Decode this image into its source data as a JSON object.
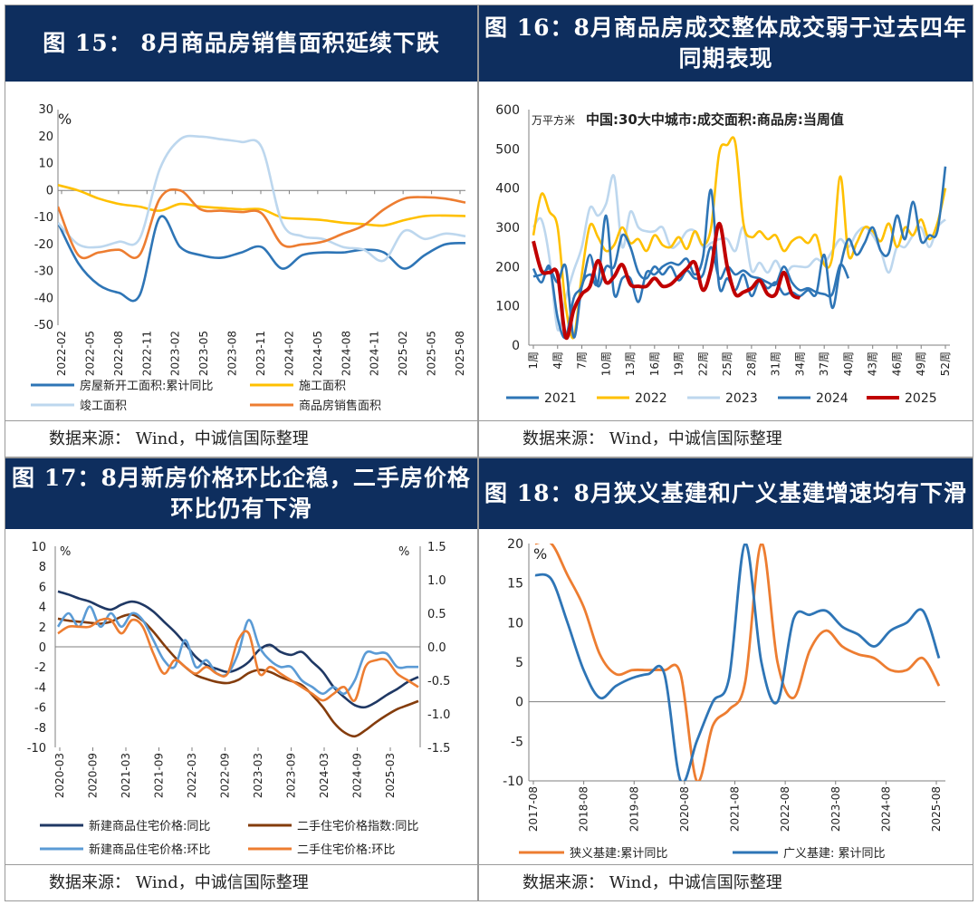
{
  "panels": {
    "p15": {
      "title": "图 15： 8月商品房销售面积延续下跌",
      "source": "数据来源： Wind，中诚信国际整理"
    },
    "p16": {
      "title": "图 16：8月商品房成交整体成交弱于过去四年同期表现",
      "source": "数据来源： Wind，中诚信国际整理"
    },
    "p17": {
      "title": "图 17：8月新房价格环比企稳，二手房价格环比仍有下滑",
      "source": "数据来源： Wind，中诚信国际整理"
    },
    "p18": {
      "title": "图 18：8月狭义基建和广义基建增速均有下滑",
      "source": "数据来源： Wind，中诚信国际整理"
    }
  },
  "chart_data": [
    {
      "id": "c15",
      "type": "line",
      "unit": "%",
      "ylim": [
        -50,
        30
      ],
      "yticks": [
        30,
        20,
        10,
        0,
        -10,
        -20,
        -30,
        -40,
        -50
      ],
      "xlabels": [
        "2022-02",
        "2022-05",
        "2022-08",
        "2022-11",
        "2023-02",
        "2023-05",
        "2023-08",
        "2023-11",
        "2024-02",
        "2024-05",
        "2024-08",
        "2024-11",
        "2025-02",
        "2025-05",
        "2025-08"
      ],
      "series": [
        {
          "name": "房屋新开工面积:累计同比",
          "color": "#2e75b6",
          "values": [
            -12,
            -27,
            -35,
            -38,
            -39,
            -10,
            -21,
            -24,
            -25,
            -23,
            -21,
            -29,
            -24,
            -23,
            -23,
            -22,
            -23,
            -29,
            -24,
            -20,
            -19.5
          ]
        },
        {
          "name": "施工面积",
          "color": "#ffc000",
          "values": [
            2,
            0,
            -3,
            -5,
            -6,
            -7.5,
            -5,
            -6,
            -6.5,
            -7,
            -7,
            -10,
            -10.5,
            -11,
            -12,
            -12.5,
            -13,
            -11,
            -9.5,
            -9.3,
            -9.5
          ]
        },
        {
          "name": "竣工面积",
          "color": "#bdd7ee",
          "values": [
            -12,
            -20,
            -21,
            -19,
            -18,
            8,
            19,
            20,
            19,
            18,
            16,
            -12,
            -17,
            -18,
            -21,
            -22,
            -26,
            -15,
            -18,
            -16,
            -17
          ]
        },
        {
          "name": "商品房销售面积",
          "color": "#ed7d31",
          "values": [
            -6,
            -24,
            -23,
            -22,
            -24,
            -3,
            0,
            -7,
            -7.5,
            -8,
            -8.5,
            -20,
            -20,
            -19,
            -16,
            -13,
            -7,
            -3,
            -2.5,
            -3,
            -4.5
          ]
        }
      ]
    },
    {
      "id": "c16",
      "type": "line",
      "title": "中国:30大中城市:成交面积:商品房:当周值",
      "unit": "万平方米",
      "ylim": [
        0,
        600
      ],
      "yticks": [
        600,
        500,
        400,
        300,
        200,
        100,
        0
      ],
      "xlabels": [
        "1周",
        "4周",
        "7周",
        "10周",
        "13周",
        "16周",
        "19周",
        "22周",
        "25周",
        "28周",
        "31周",
        "34周",
        "37周",
        "40周",
        "43周",
        "46周",
        "49周",
        "52周"
      ],
      "series": [
        {
          "name": "2021",
          "color": "#2e75b6",
          "values": [
            175,
            180,
            195,
            160,
            200,
            20,
            150,
            180,
            160,
            330,
            130,
            170,
            170,
            110,
            185,
            180,
            200,
            210,
            205,
            220,
            180,
            225,
            395,
            150,
            170,
            140,
            180,
            125,
            165,
            145,
            160,
            130,
            135,
            125,
            140,
            130,
            230,
            95,
            200,
            270,
            230,
            260,
            300,
            240,
            235,
            330,
            270,
            365,
            265,
            280,
            290,
            455
          ]
        },
        {
          "name": "2022",
          "color": "#ffc000",
          "values": [
            280,
            385,
            340,
            300,
            100,
            20,
            180,
            305,
            275,
            240,
            255,
            300,
            260,
            270,
            240,
            280,
            255,
            250,
            275,
            245,
            290,
            255,
            300,
            490,
            510,
            515,
            310,
            275,
            290,
            270,
            280,
            240,
            265,
            275,
            260,
            280,
            205,
            225,
            430,
            230,
            260,
            300,
            290,
            265,
            310,
            250,
            300,
            280,
            320,
            270,
            310,
            400
          ]
        },
        {
          "name": "2023",
          "color": "#bdd7ee",
          "values": [
            300,
            320,
            220,
            40,
            120,
            190,
            250,
            350,
            330,
            360,
            430,
            250,
            340,
            300,
            290,
            290,
            300,
            250,
            260,
            290,
            290,
            250,
            260,
            270,
            270,
            240,
            300,
            190,
            210,
            185,
            215,
            180,
            200,
            200,
            200,
            220,
            210,
            240,
            270,
            250,
            285,
            300,
            280,
            240,
            185,
            250,
            250,
            280,
            300,
            250,
            300,
            320
          ]
        },
        {
          "name": "2024",
          "color": "#2e75b6",
          "values": [
            195,
            160,
            200,
            70,
            20,
            120,
            150,
            230,
            150,
            200,
            200,
            280,
            250,
            185,
            170,
            200,
            180,
            200,
            165,
            190,
            170,
            180,
            250,
            170,
            200,
            180,
            190,
            175,
            170,
            160,
            155,
            200,
            160,
            140,
            145,
            135,
            130,
            130,
            205,
            170
          ]
        },
        {
          "name": "2025",
          "color": "#c00000",
          "values": [
            265,
            190,
            185,
            180,
            20,
            90,
            130,
            150,
            215,
            160,
            175,
            205,
            155,
            150,
            150,
            170,
            150,
            155,
            175,
            195,
            210,
            140,
            195,
            310,
            200,
            130,
            135,
            145,
            165,
            130,
            130,
            185,
            130,
            120
          ]
        }
      ]
    },
    {
      "id": "c17",
      "type": "line",
      "unit_left": "%",
      "unit_right": "%",
      "ylim_left": [
        -10,
        10
      ],
      "ylim_right": [
        -1.5,
        1.5
      ],
      "yticks_left": [
        10,
        8,
        6,
        4,
        2,
        0,
        -2,
        -4,
        -6,
        -8,
        -10
      ],
      "yticks_right": [
        "1.5",
        "1.0",
        "0.5",
        "0.0",
        "-0.5",
        "-1.0",
        "-1.5"
      ],
      "xlabels": [
        "2020-03",
        "2020-09",
        "2021-03",
        "2021-09",
        "2022-03",
        "2022-09",
        "2023-03",
        "2023-09",
        "2024-03",
        "2024-09",
        "2025-03"
      ],
      "series": [
        {
          "name": "新建商品住宅价格:同比",
          "color": "#1f3864",
          "axis": "left",
          "values": [
            5.5,
            5.2,
            4.8,
            4.5,
            4,
            3.7,
            4.2,
            4.5,
            4.2,
            3.5,
            2.5,
            1.5,
            0.3,
            -1,
            -1.8,
            -2.2,
            -2.5,
            -2.2,
            -1.5,
            -0.3,
            0.2,
            -0.5,
            -0.8,
            -0.5,
            -1.5,
            -2.5,
            -4,
            -5,
            -5.8,
            -6,
            -5.5,
            -4.8,
            -4.2,
            -3.5,
            -3
          ]
        },
        {
          "name": "二手住宅价格指数:同比",
          "color": "#843c0c",
          "axis": "left",
          "values": [
            2.8,
            2.6,
            2.5,
            2.4,
            2.3,
            2.5,
            3,
            3.2,
            2.6,
            1.5,
            0.2,
            -1,
            -2,
            -2.8,
            -3.2,
            -3.5,
            -3.6,
            -3.3,
            -2.6,
            -2.3,
            -2.5,
            -3,
            -3.4,
            -3.8,
            -4.8,
            -6,
            -7.5,
            -8.5,
            -8.9,
            -8.3,
            -7.5,
            -6.8,
            -6.2,
            -5.8,
            -5.4
          ]
        },
        {
          "name": "新建商品住宅价格:环比",
          "color": "#5b9bd5",
          "axis": "right",
          "values": [
            0.3,
            0.5,
            0.3,
            0.6,
            0.3,
            0.5,
            0.3,
            0.5,
            0.4,
            0.1,
            -0.2,
            -0.3,
            0.1,
            -0.3,
            -0.2,
            -0.4,
            -0.4,
            -0.1,
            0.4,
            0,
            -0.2,
            -0.3,
            -0.3,
            -0.5,
            -0.6,
            -0.7,
            -0.6,
            -0.7,
            -0.5,
            -0.1,
            -0.1,
            -0.1,
            -0.3,
            -0.3,
            -0.3
          ]
        },
        {
          "name": "二手住宅价格:环比",
          "color": "#ed7d31",
          "axis": "right",
          "values": [
            0.2,
            0.3,
            0.3,
            0.3,
            0.4,
            0.4,
            0.2,
            0.4,
            0.3,
            -0.1,
            -0.4,
            -0.2,
            -0.3,
            -0.4,
            -0.3,
            -0.4,
            -0.4,
            0.1,
            0.2,
            -0.4,
            -0.3,
            -0.4,
            -0.5,
            -0.6,
            -0.7,
            -0.8,
            -0.7,
            -0.6,
            -0.8,
            -0.3,
            -0.2,
            -0.2,
            -0.4,
            -0.5,
            -0.6
          ]
        }
      ]
    },
    {
      "id": "c18",
      "type": "line",
      "unit": "%",
      "ylim": [
        -10,
        20
      ],
      "yticks": [
        20,
        15,
        10,
        5,
        0,
        -5,
        -10
      ],
      "xlabels": [
        "2017-08",
        "2018-08",
        "2019-08",
        "2020-08",
        "2021-08",
        "2022-08",
        "2023-08",
        "2024-08",
        "2025-08"
      ],
      "series": [
        {
          "name": "狭义基建:累计同比",
          "color": "#ed7d31",
          "values": [
            20,
            20,
            16,
            12,
            6,
            3.5,
            4,
            4,
            4,
            3.5,
            -10,
            -3,
            -1,
            2.5,
            20,
            5,
            0.5,
            6.5,
            9,
            7,
            6,
            5.5,
            4,
            4,
            5.5,
            2
          ]
        },
        {
          "name": "广义基建: 累计同比",
          "color": "#2e75b6",
          "values": [
            16,
            15.5,
            10,
            4,
            0.5,
            2,
            3,
            3.5,
            3.5,
            -10,
            -5,
            0,
            3,
            20,
            5,
            0,
            10.5,
            11,
            11.5,
            9.5,
            8.5,
            7,
            9,
            10,
            11.5,
            5.5
          ]
        }
      ]
    }
  ]
}
